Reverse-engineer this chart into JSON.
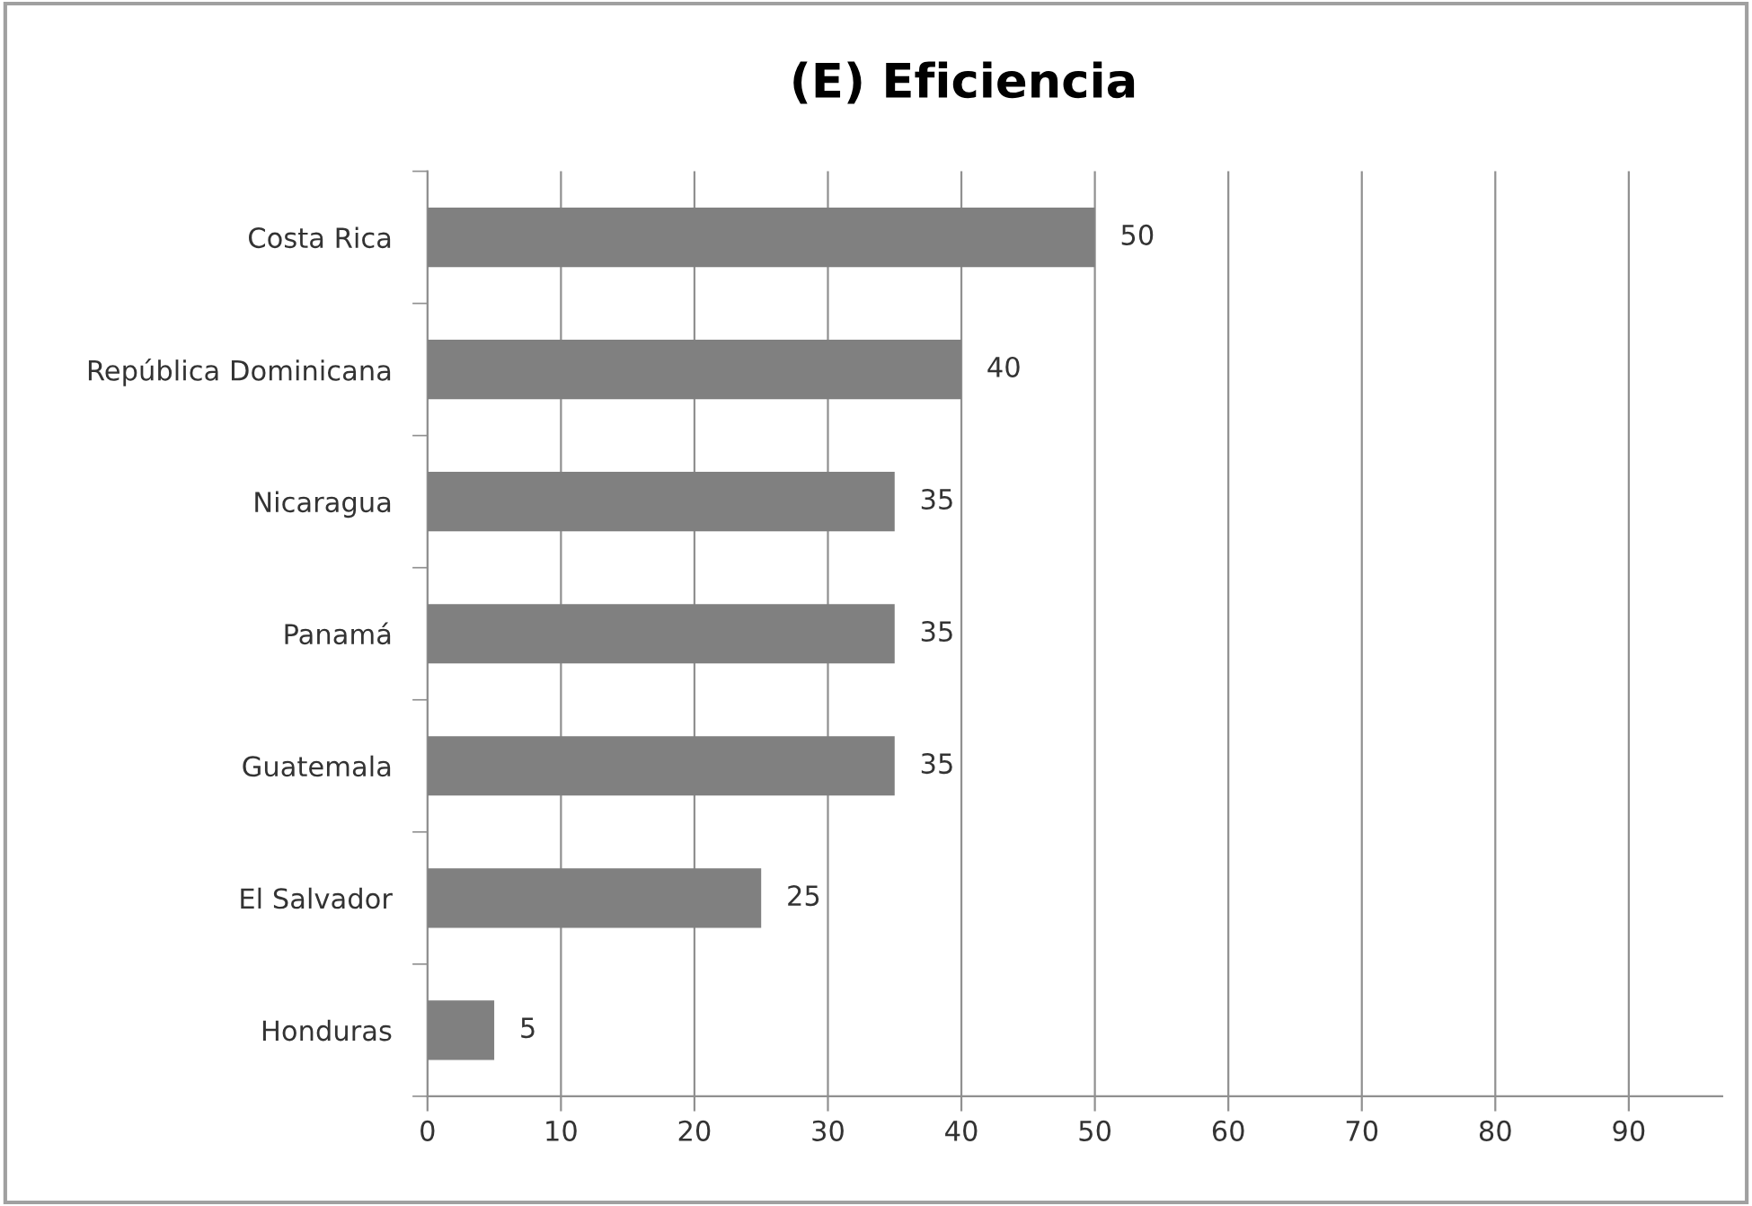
{
  "chart_data": {
    "type": "bar",
    "title": "(E) Eficiencia",
    "orientation": "horizontal",
    "categories": [
      "Costa Rica",
      "República Dominicana",
      "Nicaragua",
      "Panamá",
      "Guatemala",
      "El Salvador",
      "Honduras"
    ],
    "values": [
      50,
      40,
      35,
      35,
      35,
      25,
      5
    ],
    "color": "#808080",
    "xlim": [
      0,
      97
    ],
    "xticks": [
      0,
      10,
      20,
      30,
      40,
      50,
      60,
      70,
      80,
      90
    ],
    "grid": "x",
    "data_labels": true
  }
}
